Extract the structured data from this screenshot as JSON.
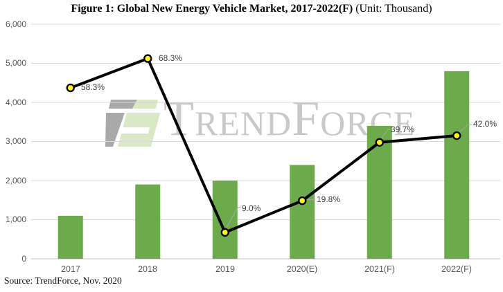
{
  "title": {
    "main": "Figure 1: Global New Energy Vehicle Market, 2017-2022(F)",
    "unit": "(Unit: Thousand)"
  },
  "source_note": "Source: TrendForce, Nov. 2020",
  "watermark_text": "TrendForce",
  "chart_data": {
    "type": "bar",
    "title": "Figure 1: Global New Energy Vehicle Market, 2017-2022(F) (Unit: Thousand)",
    "unit": "Thousand vehicles",
    "categories": [
      "2017",
      "2018",
      "2019",
      "2020(E)",
      "2021(F)",
      "2022(F)"
    ],
    "values": [
      1100,
      1900,
      2000,
      2400,
      3400,
      4800
    ],
    "line_overlay": {
      "type": "line",
      "values_percent": [
        58.3,
        68.3,
        9.0,
        19.8,
        39.7,
        42.0
      ],
      "labels": [
        "58.3%",
        "68.3%",
        "9.0%",
        "19.8%",
        "39.7%",
        "42.0%"
      ],
      "secondary_axis": {
        "range": [
          0,
          80
        ],
        "visible": false
      }
    },
    "y_tick_labels": [
      "6,000",
      "5,000",
      "4,000",
      "3,000",
      "2,000",
      "1,000",
      "0"
    ],
    "ylim": [
      0,
      6000
    ],
    "xlabel": "",
    "ylabel": "",
    "grid": "horizontal",
    "legend": "none",
    "colors": {
      "bar": "#6daa4b",
      "line": "#000000",
      "marker_fill": "#ffff00",
      "marker_stroke": "#000000",
      "grid": "#d9d9d9",
      "axis_line": "#bfbfbf",
      "leader": "#a6a6a6",
      "axis_label": "#595959",
      "data_label": "#3f3f3f",
      "watermark": "#c9c9c9",
      "logo_grey": "#a9a9a9",
      "logo_green": "#d9e8c5"
    }
  }
}
